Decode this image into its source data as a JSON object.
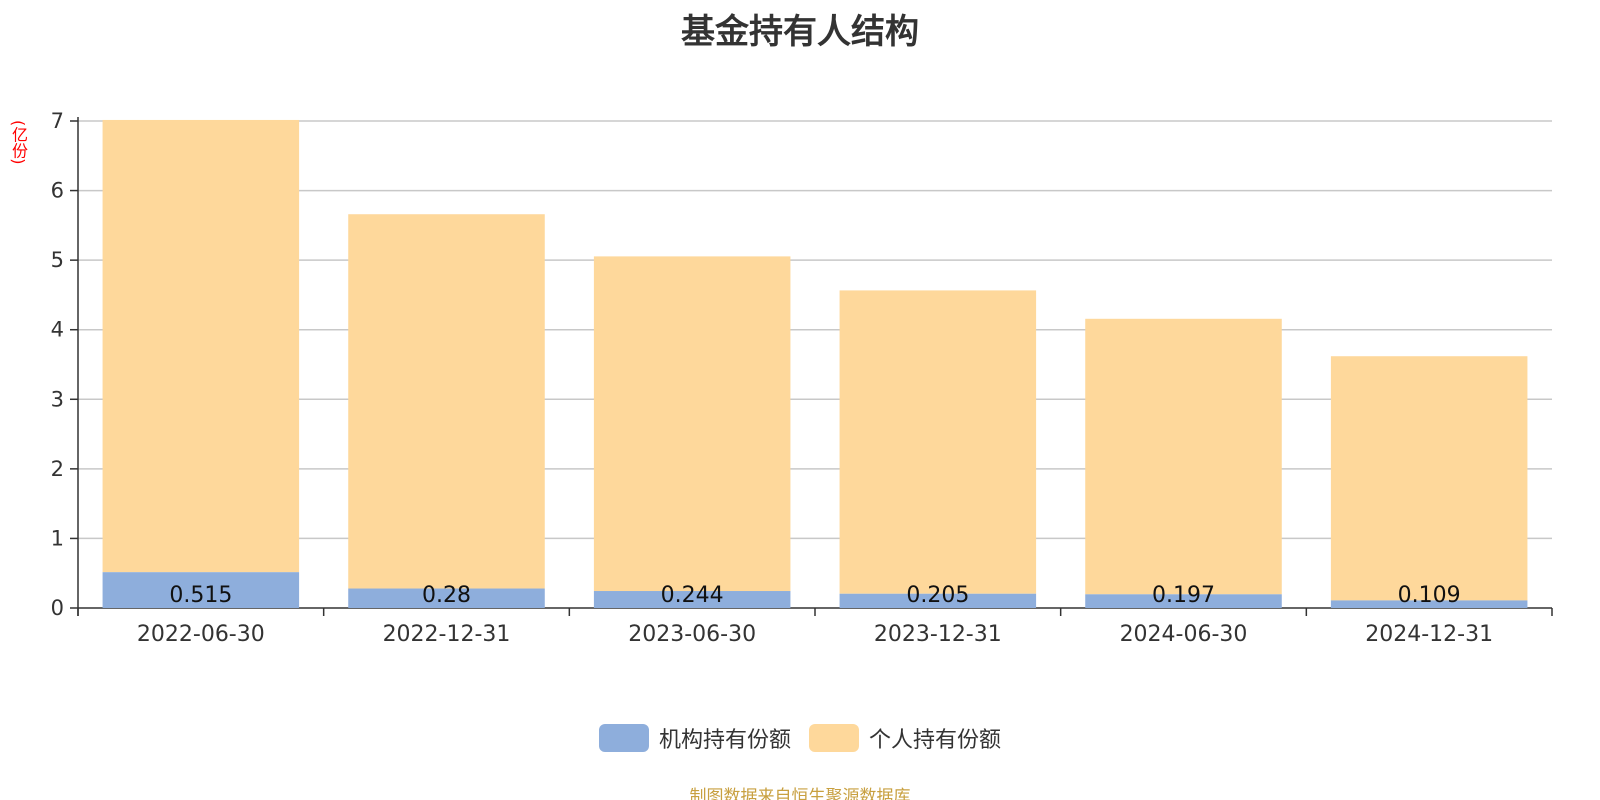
{
  "title": "基金持有人结构",
  "unit_label": "(亿份)",
  "source_note": "制图数据来自恒生聚源数据库",
  "colors": {
    "institutional": "#8eaedc",
    "individual": "#fed89b",
    "grid": "#c8c8c8",
    "axis": "#333333",
    "text": "#333333",
    "unit": "#ff0000",
    "source": "#c8a040"
  },
  "legend": [
    {
      "label": "机构持有份额",
      "color": "#8eaedc"
    },
    {
      "label": "个人持有份额",
      "color": "#fed89b"
    }
  ],
  "chart_data": {
    "type": "bar",
    "stacked": true,
    "title": "基金持有人结构",
    "ylabel": "(亿份)",
    "ylim": [
      0,
      7
    ],
    "yticks": [
      0,
      1,
      2,
      3,
      4,
      5,
      6,
      7
    ],
    "grid": true,
    "legend_position": "bottom",
    "categories": [
      "2022-06-30",
      "2022-12-31",
      "2023-06-30",
      "2023-12-31",
      "2024-06-30",
      "2024-12-31"
    ],
    "series": [
      {
        "name": "机构持有份额",
        "values": [
          0.515,
          0.28,
          0.244,
          0.205,
          0.197,
          0.109
        ],
        "labels": [
          "0.515",
          "0.28",
          "0.244",
          "0.205",
          "0.197",
          "0.109"
        ]
      },
      {
        "name": "个人持有份额",
        "values": [
          6.5,
          5.38,
          4.81,
          4.36,
          3.96,
          3.51
        ]
      }
    ]
  }
}
